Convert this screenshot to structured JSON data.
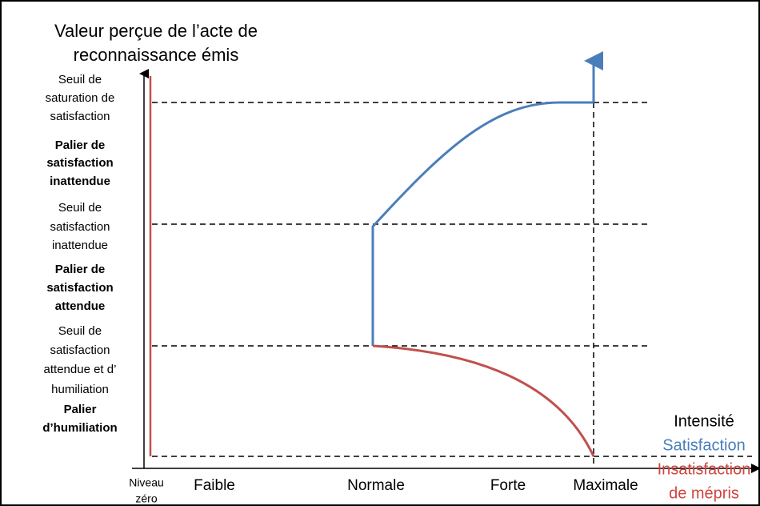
{
  "title": [
    "Valeur perçue de l’acte de",
    "reconnaissance émis"
  ],
  "levels": [
    {
      "lines": [
        "Seuil de",
        "saturation de",
        "satisfaction"
      ],
      "bold": false
    },
    {
      "lines": [
        "Palier de",
        "satisfaction",
        "inattendue"
      ],
      "bold": true
    },
    {
      "lines": [
        "Seuil de",
        "satisfaction",
        "inattendue"
      ],
      "bold": false
    },
    {
      "lines": [
        "Palier de",
        "satisfaction",
        "attendue"
      ],
      "bold": true
    },
    {
      "lines": [
        "Seuil de",
        "satisfaction",
        "attendue et d’",
        "humiliation"
      ],
      "bold": false
    },
    {
      "lines": [
        "Palier",
        "d’humiliation"
      ],
      "bold": true
    }
  ],
  "x_labels": {
    "zero": [
      "Niveau",
      "zéro"
    ],
    "steps": [
      "Faible",
      "Normale",
      "Forte",
      "Maximale"
    ]
  },
  "legend": [
    {
      "text": "Intensité",
      "color": "#000000"
    },
    {
      "text": "Satisfaction",
      "color": "#4a7ebb"
    },
    {
      "text": "Insatisfaction",
      "color": "#d0463f"
    },
    {
      "text": "de mépris",
      "color": "#d0463f"
    }
  ]
}
